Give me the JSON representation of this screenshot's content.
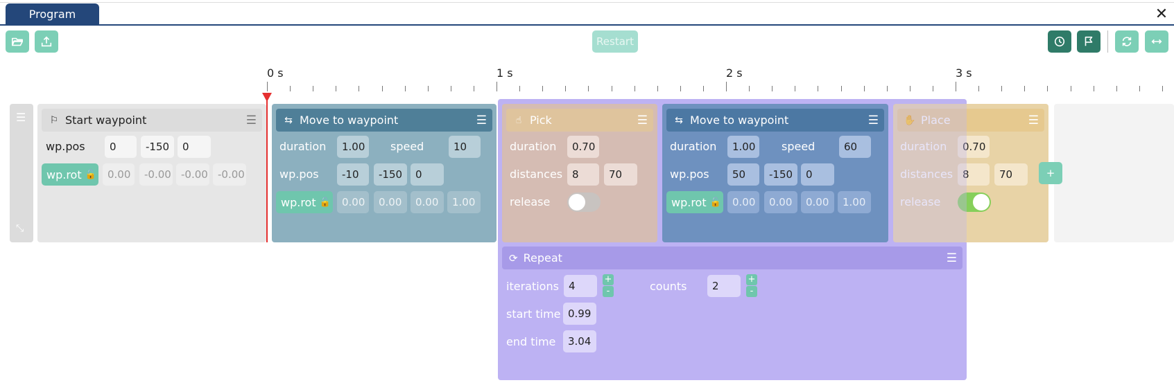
{
  "window": {
    "tab_label": "Program",
    "close_label": "✕"
  },
  "toolbar": {
    "open_icon": "folder-open-icon",
    "export_icon": "upload-icon",
    "restart_label": "Restart",
    "right_icons": [
      "clock-icon",
      "flag-icon",
      "loop-icon",
      "fit-width-icon"
    ]
  },
  "ruler": {
    "labels": [
      "0 s",
      "1 s",
      "2 s",
      "3 s"
    ]
  },
  "start_waypoint": {
    "title": "Start waypoint",
    "pos_label": "wp.pos",
    "pos": [
      "0",
      "-150",
      "0"
    ],
    "rot_label": "wp.rot",
    "rot": [
      "0.00",
      "-0.00",
      "-0.00",
      "-0.00"
    ]
  },
  "move1": {
    "title": "Move to waypoint",
    "duration_label": "duration",
    "duration": "1.00",
    "speed_label": "speed",
    "speed": "10",
    "pos_label": "wp.pos",
    "pos": [
      "-10",
      "-150",
      "0"
    ],
    "rot_label": "wp.rot",
    "rot": [
      "0.00",
      "0.00",
      "0.00",
      "1.00"
    ]
  },
  "pick": {
    "title": "Pick",
    "duration_label": "duration",
    "duration": "0.70",
    "distances_label": "distances",
    "distances": [
      "8",
      "70"
    ],
    "release_label": "release",
    "release_on": false
  },
  "move2": {
    "title": "Move to waypoint",
    "duration_label": "duration",
    "duration": "1.00",
    "speed_label": "speed",
    "speed": "60",
    "pos_label": "wp.pos",
    "pos": [
      "50",
      "-150",
      "0"
    ],
    "rot_label": "wp.rot",
    "rot": [
      "0.00",
      "0.00",
      "0.00",
      "1.00"
    ]
  },
  "place": {
    "title": "Place",
    "duration_label": "duration",
    "duration": "0.70",
    "distances_label": "distances",
    "distances": [
      "8",
      "70"
    ],
    "release_label": "release",
    "release_on": true,
    "add_label": "+"
  },
  "repeat": {
    "title": "Repeat",
    "iterations_label": "iterations",
    "iterations": "4",
    "counts_label": "counts",
    "counts": "2",
    "start_label": "start time",
    "start_time": "0.99",
    "end_label": "end time",
    "end_time": "3.04",
    "plus": "+",
    "minus": "-"
  },
  "colors": {
    "accent": "#6fc6ad",
    "tab": "#24477a",
    "move": "#5a90a8",
    "pick": "#cdb9b0",
    "place": "#e3ce9f",
    "repeat": "#b9aef2",
    "playhead": "#e53030"
  }
}
